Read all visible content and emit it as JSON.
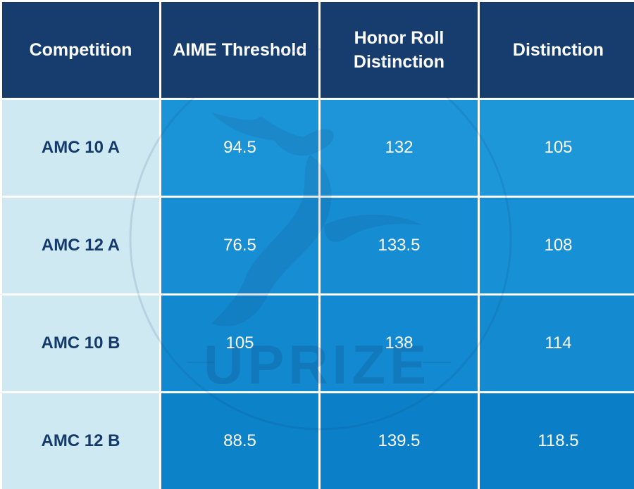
{
  "headers": [
    "Competition",
    "AIME Threshold",
    "Honor Roll Distinction",
    "Distinction"
  ],
  "rows": [
    {
      "label": "AMC 10 A",
      "aime": "94.5",
      "honor": "132",
      "distinction": "105"
    },
    {
      "label": "AMC 12 A",
      "aime": "76.5",
      "honor": "133.5",
      "distinction": "108"
    },
    {
      "label": "AMC 10 B",
      "aime": "105",
      "honor": "138",
      "distinction": "114"
    },
    {
      "label": "AMC 12 B",
      "aime": "88.5",
      "honor": "139.5",
      "distinction": "118.5"
    }
  ],
  "watermark": {
    "text": "UPRIZE",
    "icon": "deer-logo-icon"
  },
  "colors": {
    "header_bg": "#163d6e",
    "label_bg": "#cfe9f3",
    "label_text": "#133a6b",
    "value_light": "#1d94d7",
    "value_mid": "#1088cf",
    "value_dark": "#0a7dc5"
  }
}
